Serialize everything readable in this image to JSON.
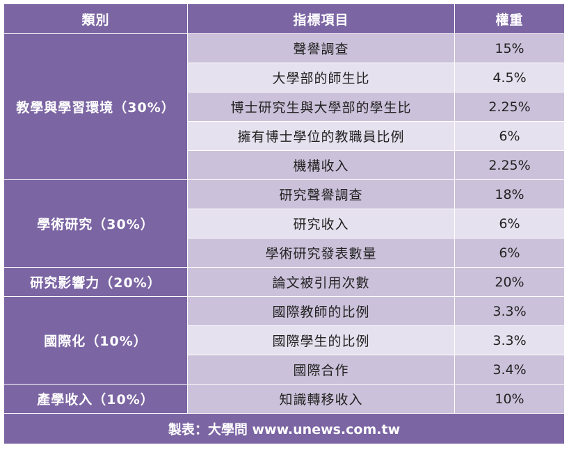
{
  "table": {
    "headers": {
      "category": "類別",
      "indicator": "指標項目",
      "weight": "權重"
    },
    "groups": [
      {
        "category": "教學與學習環境（30%）",
        "rows": [
          {
            "indicator": "聲譽調查",
            "weight": "15%"
          },
          {
            "indicator": "大學部的師生比",
            "weight": "4.5%"
          },
          {
            "indicator": "博士研究生與大學部的學生比",
            "weight": "2.25%"
          },
          {
            "indicator": "擁有博士學位的教職員比例",
            "weight": "6%"
          },
          {
            "indicator": "機構收入",
            "weight": "2.25%"
          }
        ]
      },
      {
        "category": "學術研究（30%）",
        "rows": [
          {
            "indicator": "研究聲譽調查",
            "weight": "18%"
          },
          {
            "indicator": "研究收入",
            "weight": "6%"
          },
          {
            "indicator": "學術研究發表數量",
            "weight": "6%"
          }
        ]
      },
      {
        "category": "研究影響力（20%）",
        "rows": [
          {
            "indicator": "論文被引用次數",
            "weight": "20%"
          }
        ]
      },
      {
        "category": "國際化（10%）",
        "rows": [
          {
            "indicator": "國際教師的比例",
            "weight": "3.3%"
          },
          {
            "indicator": "國際學生的比例",
            "weight": "3.3%"
          },
          {
            "indicator": "國際合作",
            "weight": "3.4%"
          }
        ]
      },
      {
        "category": "產學收入（10%）",
        "rows": [
          {
            "indicator": "知識轉移收入",
            "weight": "10%"
          }
        ]
      }
    ],
    "footer": "製表：大學問 www.unews.com.tw"
  },
  "colors": {
    "header": "#7b65a3",
    "row_dark": "#ccc1da",
    "row_light": "#e6e1ee"
  }
}
